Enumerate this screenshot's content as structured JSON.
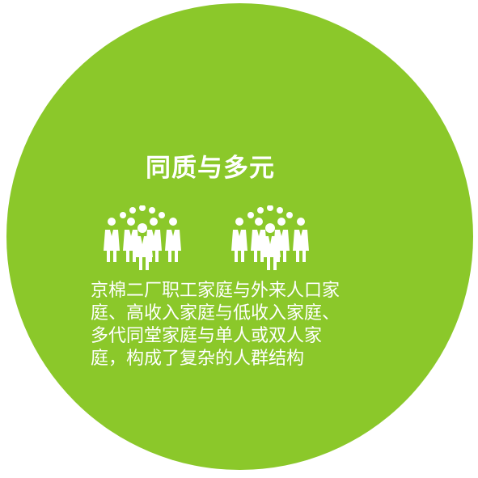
{
  "card": {
    "title": "同质与多元",
    "description": "京棉二厂职工家庭与外来人口家庭、高收入家庭与低收入家庭、多代同堂家庭与单人或双人家庭，构成了复杂的人群结构"
  },
  "colors": {
    "circle": "#8bc82a",
    "text": "#ffffff"
  },
  "icons": [
    "group-of-people-icon",
    "group-of-people-icon"
  ]
}
